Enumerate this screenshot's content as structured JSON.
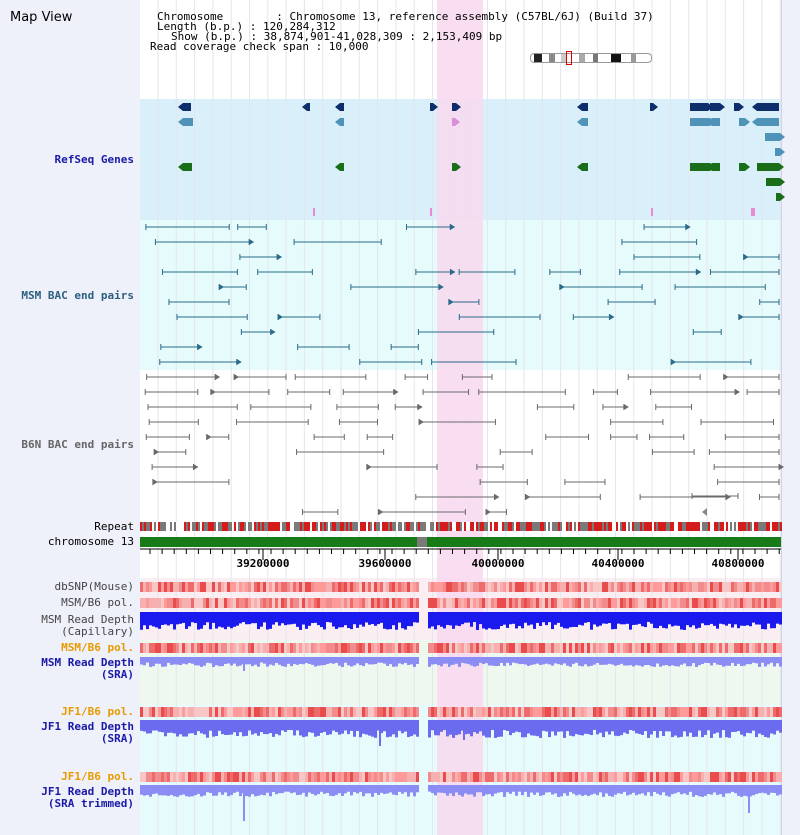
{
  "title": "Map View",
  "info": {
    "chromosome_line": "Chromosome        : Chromosome 13, reference assembly (C57BL/6J) (Build 37)",
    "length_line": "Length (b.p.) : 120,284,312",
    "show_line": "Show (b.p.) : 38,874,901-41,028,309 : 2,153,409 bp",
    "coverage_line": "Read coverage check span : 10,000"
  },
  "tracks": {
    "refseq": "RefSeq Genes",
    "msm_bac": "MSM BAC end pairs",
    "b6n_bac": "B6N BAC end pairs",
    "repeat": "Repeat",
    "chromosome": "chromosome 13",
    "dbsnp": "dbSNP(Mouse)",
    "msm_b6_pol_1": "MSM/B6 pol.",
    "msm_read_depth_cap_1": "MSM Read Depth",
    "msm_read_depth_cap_2": "(Capillary)",
    "msm_b6_pol_2": "MSM/B6 pol.",
    "msm_read_depth_sra_1": "MSM Read Depth",
    "msm_read_depth_sra_2": "(SRA)",
    "jf1_b6_pol_1": "JF1/B6 pol.",
    "jf1_read_depth_sra_1": "JF1 Read Depth",
    "jf1_read_depth_sra_2": "(SRA)",
    "jf1_b6_pol_2": "JF1/B6 pol.",
    "jf1_read_depth_trim_1": "JF1 Read Depth",
    "jf1_read_depth_trim_2": "(SRA trimmed)"
  },
  "axis_ticks": [
    "39200000",
    "39600000",
    "40000000",
    "40400000",
    "40800000"
  ],
  "colors": {
    "refseq_bg": "#d9f0fb",
    "bac_bg": "#e6fbfb",
    "highlight": "#f8d8ef",
    "navy_label": "#1a1aa6",
    "orange_label": "#e89a00",
    "gene_navy": "#0d2d6b",
    "gene_steel": "#4f93b8",
    "gene_green": "#1a6e1a",
    "chrom_green": "#177c17",
    "depth_blue": "#1a1aef",
    "depth_lavender": "#8c8cf5"
  }
}
